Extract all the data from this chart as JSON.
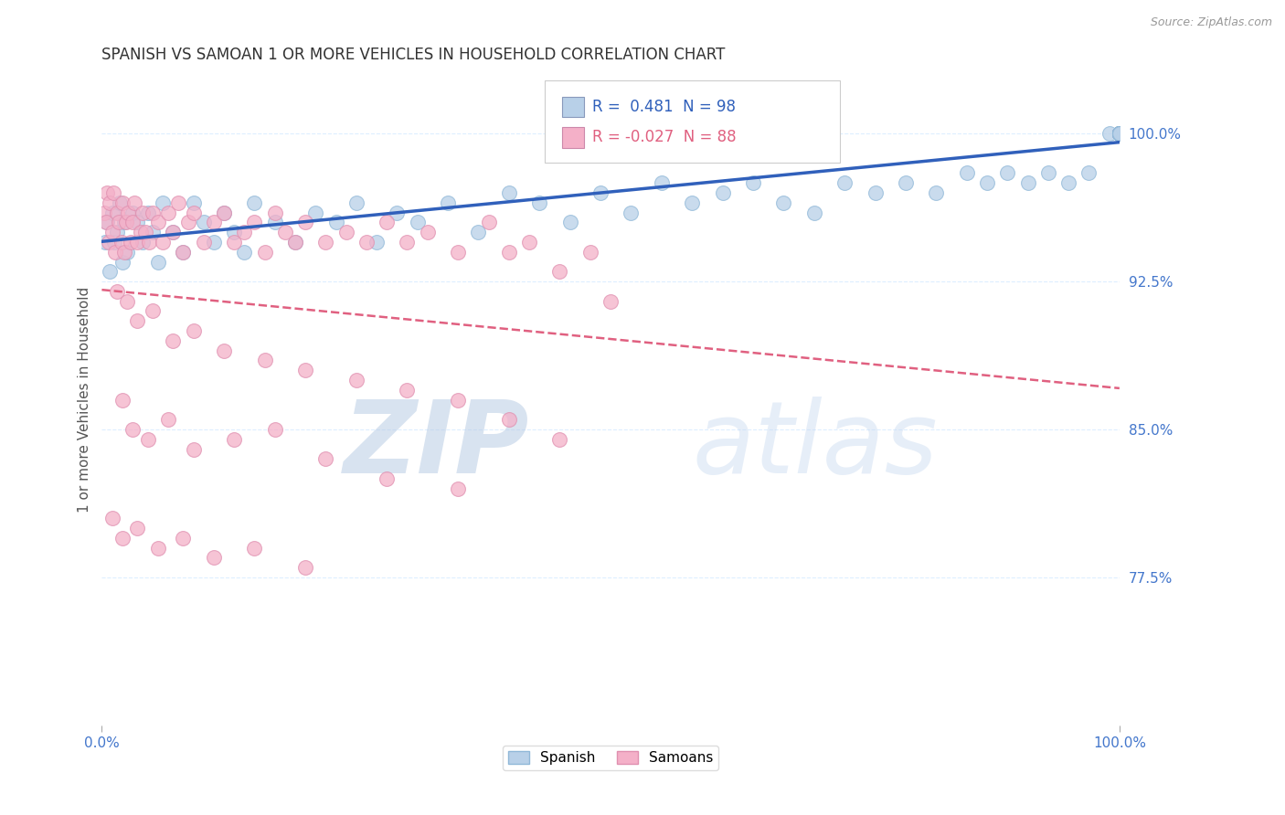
{
  "title": "SPANISH VS SAMOAN 1 OR MORE VEHICLES IN HOUSEHOLD CORRELATION CHART",
  "source_text": "Source: ZipAtlas.com",
  "ylabel": "1 or more Vehicles in Household",
  "xlim": [
    0.0,
    100.0
  ],
  "ylim": [
    70.0,
    103.0
  ],
  "yticks": [
    77.5,
    85.0,
    92.5,
    100.0
  ],
  "ytick_labels": [
    "77.5%",
    "85.0%",
    "92.5%",
    "100.0%"
  ],
  "xtick_labels": [
    "0.0%",
    "100.0%"
  ],
  "spanish_color": "#b8d0e8",
  "samoan_color": "#f4b0c8",
  "trend_spanish_color": "#3060bb",
  "trend_samoan_color": "#e06080",
  "R_spanish": 0.481,
  "N_spanish": 98,
  "R_samoan": -0.027,
  "N_samoan": 88,
  "watermark_zip": "ZIP",
  "watermark_atlas": "atlas",
  "watermark_color": "#ccddf0",
  "background_color": "#ffffff",
  "title_fontsize": 12,
  "axis_label_fontsize": 11,
  "tick_label_color": "#4477cc",
  "grid_color": "#ddeeff",
  "spanish_x": [
    0.3,
    0.5,
    0.8,
    1.0,
    1.2,
    1.5,
    1.8,
    2.0,
    2.2,
    2.5,
    3.0,
    3.5,
    4.0,
    4.5,
    5.0,
    5.5,
    6.0,
    7.0,
    8.0,
    9.0,
    10.0,
    11.0,
    12.0,
    13.0,
    14.0,
    15.0,
    17.0,
    19.0,
    21.0,
    23.0,
    25.0,
    27.0,
    29.0,
    31.0,
    34.0,
    37.0,
    40.0,
    43.0,
    46.0,
    49.0,
    52.0,
    55.0,
    58.0,
    61.0,
    64.0,
    67.0,
    70.0,
    73.0,
    76.0,
    79.0,
    82.0,
    85.0,
    87.0,
    89.0,
    91.0,
    93.0,
    95.0,
    97.0,
    99.0,
    100.0,
    100.0,
    100.0,
    100.0,
    100.0,
    100.0,
    100.0,
    100.0,
    100.0,
    100.0,
    100.0,
    100.0,
    100.0,
    100.0,
    100.0,
    100.0,
    100.0,
    100.0,
    100.0,
    100.0,
    100.0,
    100.0,
    100.0,
    100.0,
    100.0,
    100.0,
    100.0,
    100.0,
    100.0,
    100.0,
    100.0,
    100.0,
    100.0,
    100.0,
    100.0,
    100.0,
    100.0,
    100.0
  ],
  "spanish_y": [
    94.5,
    95.5,
    93.0,
    96.0,
    94.5,
    95.0,
    96.5,
    93.5,
    95.5,
    94.0,
    96.0,
    95.5,
    94.5,
    96.0,
    95.0,
    93.5,
    96.5,
    95.0,
    94.0,
    96.5,
    95.5,
    94.5,
    96.0,
    95.0,
    94.0,
    96.5,
    95.5,
    94.5,
    96.0,
    95.5,
    96.5,
    94.5,
    96.0,
    95.5,
    96.5,
    95.0,
    97.0,
    96.5,
    95.5,
    97.0,
    96.0,
    97.5,
    96.5,
    97.0,
    97.5,
    96.5,
    96.0,
    97.5,
    97.0,
    97.5,
    97.0,
    98.0,
    97.5,
    98.0,
    97.5,
    98.0,
    97.5,
    98.0,
    100.0,
    100.0,
    100.0,
    100.0,
    100.0,
    100.0,
    100.0,
    100.0,
    100.0,
    100.0,
    100.0,
    100.0,
    100.0,
    100.0,
    100.0,
    100.0,
    100.0,
    100.0,
    100.0,
    100.0,
    100.0,
    100.0,
    100.0,
    100.0,
    100.0,
    100.0,
    100.0,
    100.0,
    100.0,
    100.0,
    100.0,
    100.0,
    100.0,
    100.0,
    100.0,
    100.0,
    100.0,
    100.0,
    100.0
  ],
  "samoan_x": [
    0.2,
    0.4,
    0.5,
    0.7,
    0.8,
    1.0,
    1.1,
    1.3,
    1.5,
    1.7,
    1.9,
    2.0,
    2.2,
    2.4,
    2.6,
    2.8,
    3.0,
    3.2,
    3.5,
    3.8,
    4.0,
    4.3,
    4.6,
    5.0,
    5.5,
    6.0,
    6.5,
    7.0,
    7.5,
    8.0,
    8.5,
    9.0,
    10.0,
    11.0,
    12.0,
    13.0,
    14.0,
    15.0,
    16.0,
    17.0,
    18.0,
    19.0,
    20.0,
    22.0,
    24.0,
    26.0,
    28.0,
    30.0,
    32.0,
    35.0,
    38.0,
    40.0,
    42.0,
    45.0,
    48.0,
    50.0,
    1.5,
    2.5,
    3.5,
    5.0,
    7.0,
    9.0,
    12.0,
    16.0,
    20.0,
    25.0,
    30.0,
    35.0,
    40.0,
    45.0,
    2.0,
    3.0,
    4.5,
    6.5,
    9.0,
    13.0,
    17.0,
    22.0,
    28.0,
    35.0,
    1.0,
    2.0,
    3.5,
    5.5,
    8.0,
    11.0,
    15.0,
    20.0
  ],
  "samoan_y": [
    96.0,
    95.5,
    97.0,
    94.5,
    96.5,
    95.0,
    97.0,
    94.0,
    96.0,
    95.5,
    94.5,
    96.5,
    94.0,
    95.5,
    96.0,
    94.5,
    95.5,
    96.5,
    94.5,
    95.0,
    96.0,
    95.0,
    94.5,
    96.0,
    95.5,
    94.5,
    96.0,
    95.0,
    96.5,
    94.0,
    95.5,
    96.0,
    94.5,
    95.5,
    96.0,
    94.5,
    95.0,
    95.5,
    94.0,
    96.0,
    95.0,
    94.5,
    95.5,
    94.5,
    95.0,
    94.5,
    95.5,
    94.5,
    95.0,
    94.0,
    95.5,
    94.0,
    94.5,
    93.0,
    94.0,
    91.5,
    92.0,
    91.5,
    90.5,
    91.0,
    89.5,
    90.0,
    89.0,
    88.5,
    88.0,
    87.5,
    87.0,
    86.5,
    85.5,
    84.5,
    86.5,
    85.0,
    84.5,
    85.5,
    84.0,
    84.5,
    85.0,
    83.5,
    82.5,
    82.0,
    80.5,
    79.5,
    80.0,
    79.0,
    79.5,
    78.5,
    79.0,
    78.0
  ]
}
